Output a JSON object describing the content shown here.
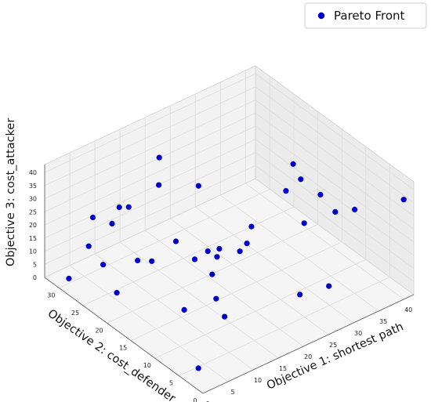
{
  "chart_data": {
    "type": "scatter",
    "dimensions": 3,
    "title": "",
    "legend": {
      "position": "top-right",
      "entries": [
        "Pareto Front"
      ]
    },
    "xlabel": "Objective 1: shortest path",
    "ylabel": "Objective 2: cost_defender",
    "zlabel": "Objective 3: cost_attacker",
    "xlim": [
      0,
      42
    ],
    "ylim": [
      0,
      33
    ],
    "zlim": [
      0,
      43
    ],
    "xticks": [
      "0",
      "5",
      "10",
      "15",
      "20",
      "25",
      "30",
      "35",
      "40"
    ],
    "yticks": [
      "0",
      "5",
      "10",
      "15",
      "20",
      "25",
      "30"
    ],
    "zticks": [
      "0",
      "5",
      "10",
      "15",
      "20",
      "25",
      "30",
      "35",
      "40"
    ],
    "grid": true,
    "series": [
      {
        "name": "Pareto Front",
        "color": "#0000cc",
        "marker": "circle",
        "points": [
          [
            40,
            0,
            38
          ],
          [
            39,
            22,
            23
          ],
          [
            35,
            5,
            32
          ],
          [
            34,
            8,
            28
          ],
          [
            32,
            9,
            35
          ],
          [
            30,
            11,
            40
          ],
          [
            28,
            12,
            36
          ],
          [
            25,
            17,
            12
          ],
          [
            27,
            2,
            14
          ],
          [
            26,
            7,
            5
          ],
          [
            24,
            4,
            38
          ],
          [
            24,
            15,
            22
          ],
          [
            23,
            25,
            25
          ],
          [
            22,
            22,
            5
          ],
          [
            20,
            18,
            10
          ],
          [
            20,
            19,
            2
          ],
          [
            19,
            29,
            34
          ],
          [
            17,
            27,
            28
          ],
          [
            16,
            14,
            3
          ],
          [
            15,
            8,
            30
          ],
          [
            12,
            30,
            20
          ],
          [
            11,
            7,
            10
          ],
          [
            11,
            27,
            25
          ],
          [
            9,
            6,
            39
          ],
          [
            8,
            22,
            14
          ],
          [
            8,
            14,
            32
          ],
          [
            7,
            18,
            20
          ],
          [
            6,
            8,
            35
          ],
          [
            4,
            25,
            12
          ],
          [
            4,
            28,
            15
          ],
          [
            2,
            6,
            22
          ],
          [
            1,
            24,
            34
          ],
          [
            1,
            19,
            12
          ],
          [
            1,
            20,
            37
          ],
          [
            1,
            29,
            4
          ],
          [
            1,
            2,
            6
          ]
        ]
      }
    ]
  }
}
